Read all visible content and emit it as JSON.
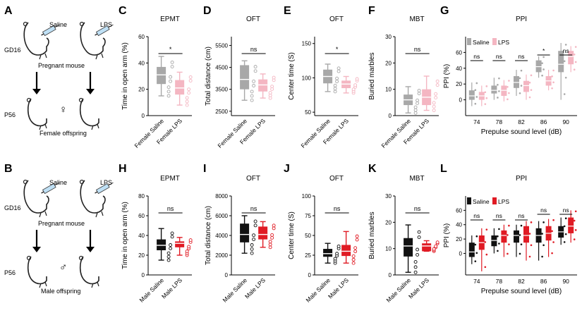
{
  "panel_letters": {
    "A": "A",
    "B": "B",
    "C": "C",
    "D": "D",
    "E": "E",
    "F": "F",
    "G": "G",
    "H": "H",
    "I": "I",
    "J": "J",
    "K": "K",
    "L": "L"
  },
  "schematic_top": {
    "saline": "Saline",
    "lps": "LPS",
    "gd": "GD16",
    "pregnant": "Pregnant mouse",
    "age": "P56",
    "sex_symbol": "♀",
    "offspring": "Female offspring"
  },
  "schematic_bottom": {
    "saline": "Saline",
    "lps": "LPS",
    "gd": "GD16",
    "pregnant": "Pregnant mouse",
    "age": "P56",
    "sex_symbol": "♂",
    "offspring": "Male offspring"
  },
  "colors": {
    "female_saline": "#a8a8a8",
    "female_lps": "#f4b6c2",
    "male_saline": "#111111",
    "male_lps": "#e01b24"
  },
  "ppi_legend": {
    "saline": "Saline",
    "lps": "LPS"
  },
  "charts": [
    {
      "id": "C",
      "title": "EPMT",
      "ylabel": "Time in open arm (%)",
      "yticks": [
        "0",
        "20",
        "40",
        "60"
      ],
      "cats": [
        "Female Saline",
        "Female LPS"
      ],
      "sig": "*",
      "ymin": 0,
      "ymax": 60,
      "boxes": [
        {
          "q1": 24,
          "med": 31,
          "q3": 37,
          "lo": 15,
          "hi": 45
        },
        {
          "q1": 16,
          "med": 21,
          "q3": 27,
          "lo": 8,
          "hi": 33
        }
      ]
    },
    {
      "id": "D",
      "title": "OFT",
      "ylabel": "Total distance (cm)",
      "yticks": [
        "2500",
        "3500",
        "4500",
        "5500"
      ],
      "cats": [
        "Female Saline",
        "Female LPS"
      ],
      "sig": "ns",
      "ymin": 2300,
      "ymax": 5900,
      "boxes": [
        {
          "q1": 3500,
          "med": 3950,
          "q3": 4600,
          "lo": 3000,
          "hi": 4800
        },
        {
          "q1": 3400,
          "med": 3700,
          "q3": 3950,
          "lo": 3100,
          "hi": 4200
        }
      ]
    },
    {
      "id": "E",
      "title": "OFT",
      "ylabel": "Center time (S)",
      "yticks": [
        "50",
        "100",
        "150"
      ],
      "cats": [
        "Female Saline",
        "Female LPS"
      ],
      "sig": "*",
      "ymin": 45,
      "ymax": 160,
      "boxes": [
        {
          "q1": 92,
          "med": 102,
          "q3": 112,
          "lo": 80,
          "hi": 120
        },
        {
          "q1": 85,
          "med": 91,
          "q3": 96,
          "lo": 78,
          "hi": 102
        }
      ]
    },
    {
      "id": "F",
      "title": "MBT",
      "ylabel": "Buried marbles",
      "yticks": [
        "0",
        "10",
        "20",
        "30"
      ],
      "cats": [
        "Female Saline",
        "Female LPS"
      ],
      "sig": "ns",
      "ymin": 0,
      "ymax": 30,
      "boxes": [
        {
          "q1": 4,
          "med": 6,
          "q3": 8,
          "lo": 1,
          "hi": 11
        },
        {
          "q1": 4,
          "med": 7,
          "q3": 10,
          "lo": 2,
          "hi": 15
        }
      ]
    },
    {
      "id": "H",
      "title": "EPMT",
      "ylabel": "Time in open arm (%)",
      "yticks": [
        "0",
        "20",
        "40",
        "60",
        "80"
      ],
      "cats": [
        "Male Saline",
        "Male LPS"
      ],
      "sig": "ns",
      "ymin": 0,
      "ymax": 80,
      "boxes": [
        {
          "q1": 25,
          "med": 30,
          "q3": 36,
          "lo": 15,
          "hi": 47
        },
        {
          "q1": 28,
          "med": 32,
          "q3": 34,
          "lo": 20,
          "hi": 38
        }
      ]
    },
    {
      "id": "I",
      "title": "OFT",
      "ylabel": "Total distance (cm)",
      "yticks": [
        "0",
        "2000",
        "4000",
        "6000",
        "8000"
      ],
      "cats": [
        "Male Saline",
        "Male LPS"
      ],
      "sig": "ns",
      "ymin": 0,
      "ymax": 8000,
      "boxes": [
        {
          "q1": 3300,
          "med": 4100,
          "q3": 5200,
          "lo": 2200,
          "hi": 6000
        },
        {
          "q1": 3600,
          "med": 4100,
          "q3": 4900,
          "lo": 2800,
          "hi": 5400
        }
      ]
    },
    {
      "id": "J",
      "title": "OFT",
      "ylabel": "Center time (S)",
      "yticks": [
        "0",
        "25",
        "50",
        "75",
        "100"
      ],
      "cats": [
        "Male Saline",
        "Male LPS"
      ],
      "sig": "ns",
      "ymin": 0,
      "ymax": 100,
      "boxes": [
        {
          "q1": 23,
          "med": 27,
          "q3": 33,
          "lo": 15,
          "hi": 40
        },
        {
          "q1": 24,
          "med": 30,
          "q3": 38,
          "lo": 15,
          "hi": 55
        }
      ]
    },
    {
      "id": "K",
      "title": "MBT",
      "ylabel": "Buried marbles",
      "yticks": [
        "0",
        "10",
        "20",
        "30"
      ],
      "cats": [
        "Male Saline",
        "Male LPS"
      ],
      "sig": "ns",
      "ymin": 0,
      "ymax": 30,
      "boxes": [
        {
          "q1": 7,
          "med": 11,
          "q3": 14,
          "lo": 1,
          "hi": 19
        },
        {
          "q1": 9,
          "med": 11,
          "q3": 12,
          "lo": 9,
          "hi": 13
        }
      ]
    }
  ],
  "ppi_charts": [
    {
      "id": "G",
      "title": "PPI",
      "ylabel": "PPI (%)",
      "xlabel": "Prepulse sound level (dB)",
      "yticks": [
        "0",
        "20",
        "40",
        "60"
      ],
      "ymin": -20,
      "ymax": 80,
      "levels": [
        "74",
        "78",
        "82",
        "86",
        "90"
      ],
      "sigs": [
        "ns",
        "ns",
        "ns",
        "*",
        "ns"
      ],
      "saline": [
        {
          "q1": 0,
          "med": 5,
          "q3": 12,
          "lo": -8,
          "hi": 22
        },
        {
          "q1": 8,
          "med": 12,
          "q3": 18,
          "lo": 0,
          "hi": 28
        },
        {
          "q1": 15,
          "med": 22,
          "q3": 30,
          "lo": 5,
          "hi": 38
        },
        {
          "q1": 35,
          "med": 42,
          "q3": 50,
          "lo": 28,
          "hi": 55
        },
        {
          "q1": 35,
          "med": 45,
          "q3": 62,
          "lo": 0,
          "hi": 72
        }
      ],
      "lps": [
        {
          "q1": 0,
          "med": 5,
          "q3": 10,
          "lo": -8,
          "hi": 18
        },
        {
          "q1": 5,
          "med": 12,
          "q3": 18,
          "lo": -2,
          "hi": 25
        },
        {
          "q1": 10,
          "med": 18,
          "q3": 24,
          "lo": 0,
          "hi": 32
        },
        {
          "q1": 18,
          "med": 24,
          "q3": 30,
          "lo": 12,
          "hi": 38
        },
        {
          "q1": 45,
          "med": 55,
          "q3": 62,
          "lo": 35,
          "hi": 68
        }
      ]
    },
    {
      "id": "L",
      "title": "PPI",
      "ylabel": "PPI (%)",
      "xlabel": "Prepulse sound level (dB)",
      "yticks": [
        "0",
        "20",
        "40",
        "60"
      ],
      "ymin": -30,
      "ymax": 80,
      "levels": [
        "74",
        "78",
        "82",
        "86",
        "90"
      ],
      "sigs": [
        "ns",
        "ns",
        "ns",
        "ns",
        "ns"
      ],
      "saline": [
        {
          "q1": -5,
          "med": 2,
          "q3": 15,
          "lo": -15,
          "hi": 25
        },
        {
          "q1": 10,
          "med": 18,
          "q3": 25,
          "lo": 0,
          "hi": 35
        },
        {
          "q1": 15,
          "med": 25,
          "q3": 32,
          "lo": -5,
          "hi": 40
        },
        {
          "q1": 15,
          "med": 25,
          "q3": 35,
          "lo": -10,
          "hi": 45
        },
        {
          "q1": 22,
          "med": 30,
          "q3": 38,
          "lo": 12,
          "hi": 50
        }
      ],
      "lps": [
        {
          "q1": 5,
          "med": 15,
          "q3": 25,
          "lo": -25,
          "hi": 35
        },
        {
          "q1": 15,
          "med": 25,
          "q3": 32,
          "lo": -5,
          "hi": 40
        },
        {
          "q1": 15,
          "med": 25,
          "q3": 38,
          "lo": -10,
          "hi": 45
        },
        {
          "q1": 18,
          "med": 28,
          "q3": 38,
          "lo": -5,
          "hi": 48
        },
        {
          "q1": 28,
          "med": 38,
          "q3": 50,
          "lo": 15,
          "hi": 60
        }
      ]
    }
  ]
}
